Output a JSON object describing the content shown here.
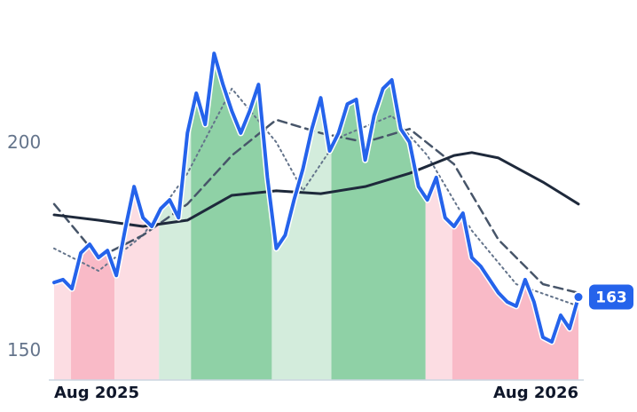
{
  "chart_data": {
    "type": "line",
    "xlim": [
      0,
      59
    ],
    "xticks": [
      {
        "value": 5.2,
        "label": "Aug 2025"
      },
      {
        "value": 53.7,
        "label": "Aug 2026"
      }
    ],
    "ylim": [
      143,
      226
    ],
    "yticks": [
      150,
      200
    ],
    "grid": false,
    "regions": [
      {
        "start": 0,
        "end": 1.9,
        "color": "#fcdde3"
      },
      {
        "start": 1.9,
        "end": 6.8,
        "color": "#f9bac7"
      },
      {
        "start": 6.8,
        "end": 11.8,
        "color": "#fcdde3"
      },
      {
        "start": 11.8,
        "end": 15.4,
        "color": "#d3ecdc"
      },
      {
        "start": 15.4,
        "end": 24.5,
        "color": "#8fd1a6"
      },
      {
        "start": 24.5,
        "end": 31.2,
        "color": "#d3ecdc"
      },
      {
        "start": 31.2,
        "end": 41.8,
        "color": "#8fd1a6"
      },
      {
        "start": 41.8,
        "end": 44.8,
        "color": "#fcdde3"
      },
      {
        "start": 44.8,
        "end": 59,
        "color": "#f9bac7"
      }
    ],
    "series": [
      {
        "color": "#2563eb",
        "style": "solid",
        "width": 4,
        "x": [
          0,
          1,
          2,
          3,
          4,
          5,
          6,
          7,
          8,
          9,
          10,
          11,
          12,
          13,
          14,
          15,
          16,
          17,
          18,
          19,
          20,
          21,
          22,
          23,
          24,
          25,
          26,
          27,
          28,
          29,
          30,
          31,
          32,
          33,
          34,
          35,
          36,
          37,
          38,
          39,
          40,
          41,
          42,
          43,
          44,
          45,
          46,
          47,
          48,
          49,
          50,
          51,
          52,
          53,
          54,
          55,
          56,
          57,
          58,
          59
        ],
        "values": [
          166.5,
          167.2,
          165.0,
          173.6,
          175.7,
          172.5,
          174.2,
          168.2,
          179.4,
          189.6,
          182.1,
          180.0,
          184.3,
          186.4,
          182.1,
          202.5,
          212.1,
          204.6,
          221.7,
          214.2,
          207.8,
          202.5,
          207.8,
          214.2,
          191.8,
          174.7,
          177.9,
          186.4,
          193.9,
          203.5,
          211.0,
          198.2,
          202.5,
          209.5,
          210.6,
          196.0,
          206.7,
          213.2,
          215.3,
          203.5,
          200.3,
          189.6,
          186.4,
          191.8,
          182.1,
          180.0,
          183.2,
          172.5,
          170.4,
          167.2,
          164.0,
          161.8,
          160.8,
          167.2,
          161.8,
          153.3,
          152.2,
          158.6,
          155.4,
          163
        ]
      },
      {
        "color": "#1e293b",
        "style": "solid",
        "width": 3,
        "x": [
          0,
          5,
          10,
          15,
          20,
          25,
          30,
          35,
          40,
          45,
          47,
          50,
          55,
          59
        ],
        "values": [
          182.8,
          181.5,
          180.0,
          181.5,
          187.5,
          188.6,
          187.9,
          189.6,
          192.8,
          197.1,
          197.8,
          196.5,
          190.7,
          185.4
        ]
      },
      {
        "color": "#475569",
        "style": "dashed",
        "width": 2.5,
        "x": [
          0,
          5,
          10,
          15,
          20,
          25,
          30,
          35,
          40,
          45,
          50,
          55,
          59
        ],
        "values": [
          185.4,
          172.5,
          177.9,
          185.4,
          197.1,
          205.7,
          202.5,
          200.3,
          203.5,
          195.0,
          176.8,
          166.1,
          164.0
        ]
      },
      {
        "color": "#64748b",
        "style": "dotted",
        "width": 2,
        "x": [
          0,
          5,
          10,
          15,
          20,
          25,
          28,
          32,
          38,
          42,
          47,
          52,
          59
        ],
        "values": [
          174.7,
          169.3,
          177.9,
          192.8,
          213.2,
          200.3,
          188.6,
          201.4,
          206.7,
          197.1,
          179.0,
          166.1,
          160.8
        ]
      }
    ]
  }
}
